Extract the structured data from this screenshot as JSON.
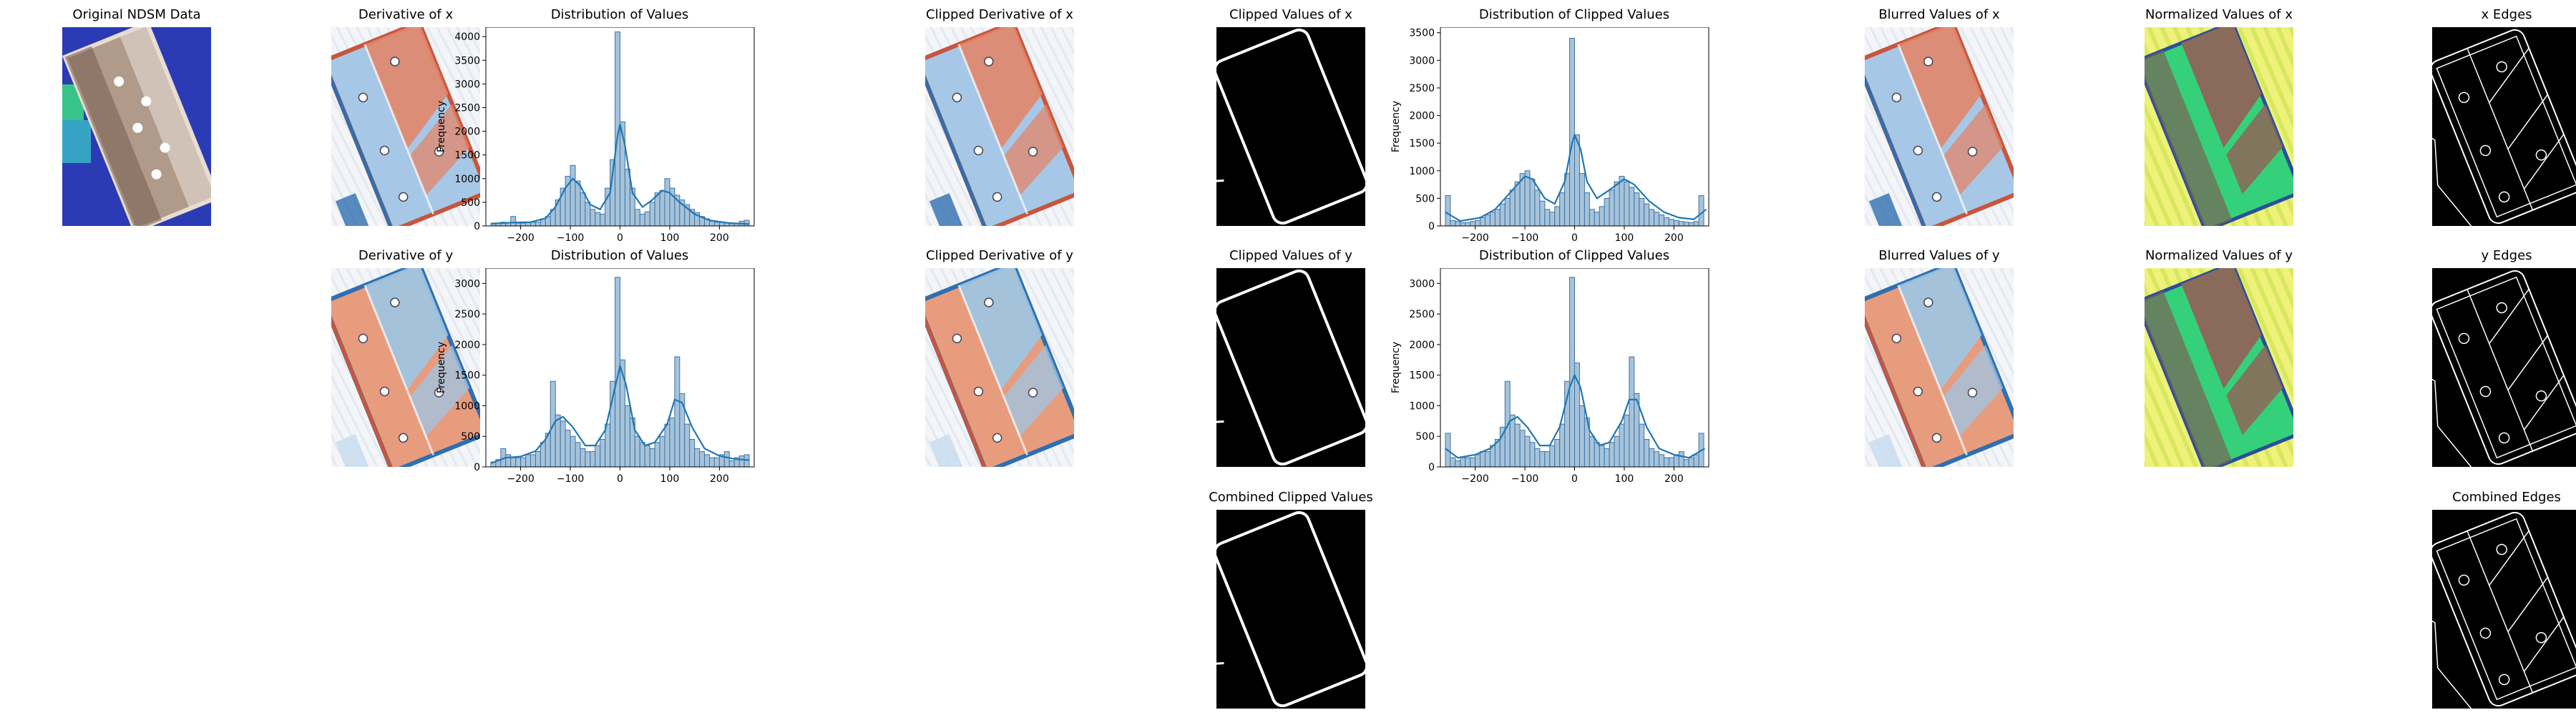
{
  "figure": {
    "panels": [
      {
        "id": "ndsm",
        "title": "Original NDSM Data",
        "kind": "ndsm"
      },
      {
        "id": "dx",
        "title": "Derivative of x",
        "kind": "rdbu-x"
      },
      {
        "id": "dx_hist",
        "title": "Distribution of Values",
        "kind": "hist"
      },
      {
        "id": "dx_clip",
        "title": "Clipped Derivative of x",
        "kind": "rdbu-x"
      },
      {
        "id": "cx",
        "title": "Clipped Values  of x",
        "kind": "edges-clip"
      },
      {
        "id": "cx_hist",
        "title": "Distribution of Clipped Values",
        "kind": "hist"
      },
      {
        "id": "bx",
        "title": "Blurred Values of x",
        "kind": "rdbu-x"
      },
      {
        "id": "nx",
        "title": "Normalized Values of x",
        "kind": "norm"
      },
      {
        "id": "ex",
        "title": "x Edges",
        "kind": "edges"
      },
      {
        "id": "dy",
        "title": "Derivative of y",
        "kind": "rdbu-y"
      },
      {
        "id": "dy_hist",
        "title": "Distribution of Values",
        "kind": "hist"
      },
      {
        "id": "dy_clip",
        "title": "Clipped Derivative of y",
        "kind": "rdbu-y"
      },
      {
        "id": "cy",
        "title": "Clipped Values  of y",
        "kind": "edges-clip"
      },
      {
        "id": "cy_hist",
        "title": "Distribution of Clipped Values",
        "kind": "hist"
      },
      {
        "id": "by",
        "title": "Blurred Values of y",
        "kind": "rdbu-y"
      },
      {
        "id": "ny",
        "title": "Normalized Values of y",
        "kind": "norm"
      },
      {
        "id": "ey",
        "title": "y Edges",
        "kind": "edges"
      },
      {
        "id": "cc",
        "title": "Combined Clipped Values",
        "kind": "edges-clip"
      },
      {
        "id": "ce",
        "title": "Combined Edges",
        "kind": "edges"
      }
    ],
    "colors": {
      "bar_fill": "#a6c3da",
      "bar_edge": "#3f73a3",
      "kde_line": "#1f77b4",
      "red": "#c8553d",
      "blue": "#2f6fb0",
      "navy": "#2b3bb5",
      "edge_bg": "#000000",
      "edge_line": "#ffffff"
    }
  },
  "chart_data": [
    {
      "id": "dx_hist",
      "type": "bar",
      "title": "Distribution of Values",
      "ylabel": "Frequency",
      "xlim": [
        -270,
        270
      ],
      "ylim": [
        0,
        4200
      ],
      "xticks": [
        -200,
        -100,
        0,
        100,
        200
      ],
      "yticks": [
        0,
        500,
        1000,
        1500,
        2000,
        2500,
        3000,
        3500,
        4000
      ],
      "bin_edges_step": 10,
      "x": [
        -255,
        -245,
        -235,
        -225,
        -215,
        -205,
        -195,
        -185,
        -175,
        -165,
        -155,
        -145,
        -135,
        -125,
        -115,
        -105,
        -95,
        -85,
        -75,
        -65,
        -55,
        -45,
        -35,
        -25,
        -15,
        -5,
        5,
        15,
        25,
        35,
        45,
        55,
        65,
        75,
        85,
        95,
        105,
        115,
        125,
        135,
        145,
        155,
        165,
        175,
        185,
        195,
        205,
        215,
        225,
        235,
        245,
        255
      ],
      "values": [
        40,
        60,
        80,
        60,
        200,
        60,
        60,
        70,
        80,
        80,
        150,
        200,
        350,
        550,
        800,
        1050,
        1280,
        950,
        700,
        500,
        350,
        280,
        250,
        800,
        1400,
        4100,
        2200,
        1200,
        800,
        350,
        250,
        300,
        500,
        700,
        750,
        1000,
        800,
        650,
        550,
        450,
        350,
        280,
        200,
        150,
        100,
        80,
        70,
        60,
        50,
        60,
        100,
        120
      ],
      "kde": [
        [
          -260,
          50
        ],
        [
          -220,
          70
        ],
        [
          -180,
          80
        ],
        [
          -150,
          160
        ],
        [
          -130,
          400
        ],
        [
          -110,
          800
        ],
        [
          -95,
          1000
        ],
        [
          -80,
          850
        ],
        [
          -60,
          450
        ],
        [
          -40,
          350
        ],
        [
          -20,
          700
        ],
        [
          -5,
          1900
        ],
        [
          0,
          2150
        ],
        [
          10,
          1700
        ],
        [
          25,
          700
        ],
        [
          45,
          400
        ],
        [
          65,
          550
        ],
        [
          85,
          750
        ],
        [
          100,
          700
        ],
        [
          120,
          500
        ],
        [
          150,
          250
        ],
        [
          180,
          120
        ],
        [
          220,
          60
        ],
        [
          260,
          40
        ]
      ]
    },
    {
      "id": "cx_hist",
      "type": "bar",
      "title": "Distribution of Clipped Values",
      "ylabel": "Frequency",
      "xlim": [
        -270,
        270
      ],
      "ylim": [
        0,
        3600
      ],
      "xticks": [
        -200,
        -100,
        0,
        100,
        200
      ],
      "yticks": [
        0,
        500,
        1000,
        1500,
        2000,
        2500,
        3000,
        3500
      ],
      "x": [
        -255,
        -245,
        -235,
        -225,
        -215,
        -205,
        -195,
        -185,
        -175,
        -165,
        -155,
        -145,
        -135,
        -125,
        -115,
        -105,
        -95,
        -85,
        -75,
        -65,
        -55,
        -45,
        -35,
        -25,
        -15,
        -5,
        5,
        15,
        25,
        35,
        45,
        55,
        65,
        75,
        85,
        95,
        105,
        115,
        125,
        135,
        145,
        155,
        165,
        175,
        185,
        195,
        205,
        215,
        225,
        235,
        245,
        255
      ],
      "values": [
        550,
        100,
        80,
        60,
        60,
        80,
        100,
        150,
        200,
        250,
        300,
        400,
        500,
        650,
        800,
        950,
        1000,
        850,
        650,
        450,
        300,
        250,
        350,
        600,
        950,
        3400,
        1650,
        950,
        600,
        300,
        250,
        350,
        500,
        650,
        800,
        900,
        800,
        700,
        600,
        500,
        400,
        300,
        250,
        200,
        150,
        120,
        100,
        80,
        70,
        60,
        80,
        550
      ],
      "kde": [
        [
          -260,
          250
        ],
        [
          -230,
          90
        ],
        [
          -190,
          150
        ],
        [
          -160,
          300
        ],
        [
          -130,
          600
        ],
        [
          -100,
          900
        ],
        [
          -85,
          850
        ],
        [
          -60,
          500
        ],
        [
          -40,
          400
        ],
        [
          -20,
          800
        ],
        [
          -5,
          1500
        ],
        [
          0,
          1650
        ],
        [
          12,
          1400
        ],
        [
          25,
          800
        ],
        [
          45,
          500
        ],
        [
          70,
          650
        ],
        [
          100,
          850
        ],
        [
          120,
          750
        ],
        [
          150,
          450
        ],
        [
          180,
          250
        ],
        [
          210,
          150
        ],
        [
          240,
          120
        ],
        [
          265,
          300
        ]
      ]
    },
    {
      "id": "dy_hist",
      "type": "bar",
      "title": "Distribution of Values",
      "ylabel": "Frequency",
      "xlim": [
        -270,
        270
      ],
      "ylim": [
        0,
        3250
      ],
      "xticks": [
        -200,
        -100,
        0,
        100,
        200
      ],
      "yticks": [
        0,
        500,
        1000,
        1500,
        2000,
        2500,
        3000
      ],
      "x": [
        -255,
        -245,
        -235,
        -225,
        -215,
        -205,
        -195,
        -185,
        -175,
        -165,
        -155,
        -145,
        -135,
        -125,
        -115,
        -105,
        -95,
        -85,
        -75,
        -65,
        -55,
        -45,
        -35,
        -25,
        -15,
        -5,
        5,
        15,
        25,
        35,
        45,
        55,
        65,
        75,
        85,
        95,
        105,
        115,
        125,
        135,
        145,
        155,
        165,
        175,
        185,
        195,
        205,
        215,
        225,
        235,
        245,
        255
      ],
      "values": [
        80,
        120,
        300,
        200,
        150,
        150,
        150,
        200,
        200,
        250,
        400,
        550,
        1400,
        850,
        750,
        600,
        500,
        400,
        300,
        250,
        250,
        350,
        450,
        700,
        1400,
        3100,
        1750,
        1000,
        800,
        500,
        400,
        350,
        300,
        400,
        500,
        700,
        800,
        1800,
        1200,
        700,
        450,
        300,
        250,
        200,
        150,
        150,
        200,
        250,
        100,
        150,
        180,
        200
      ],
      "kde": [
        [
          -260,
          60
        ],
        [
          -230,
          150
        ],
        [
          -200,
          170
        ],
        [
          -170,
          260
        ],
        [
          -150,
          450
        ],
        [
          -130,
          750
        ],
        [
          -115,
          820
        ],
        [
          -95,
          650
        ],
        [
          -70,
          350
        ],
        [
          -50,
          350
        ],
        [
          -30,
          600
        ],
        [
          -10,
          1300
        ],
        [
          0,
          1650
        ],
        [
          12,
          1350
        ],
        [
          30,
          600
        ],
        [
          50,
          350
        ],
        [
          70,
          400
        ],
        [
          95,
          700
        ],
        [
          110,
          1100
        ],
        [
          125,
          1050
        ],
        [
          145,
          650
        ],
        [
          170,
          300
        ],
        [
          200,
          180
        ],
        [
          230,
          130
        ],
        [
          260,
          110
        ]
      ]
    },
    {
      "id": "cy_hist",
      "type": "bar",
      "title": "Distribution of Clipped Values",
      "ylabel": "Frequency",
      "xlim": [
        -270,
        270
      ],
      "ylim": [
        0,
        3250
      ],
      "xticks": [
        -200,
        -100,
        0,
        100,
        200
      ],
      "yticks": [
        0,
        500,
        1000,
        1500,
        2000,
        2500,
        3000
      ],
      "x": [
        -255,
        -245,
        -235,
        -225,
        -215,
        -205,
        -195,
        -185,
        -175,
        -165,
        -155,
        -145,
        -135,
        -125,
        -115,
        -105,
        -95,
        -85,
        -75,
        -65,
        -55,
        -45,
        -35,
        -25,
        -15,
        -5,
        5,
        15,
        25,
        35,
        45,
        55,
        65,
        75,
        85,
        95,
        105,
        115,
        125,
        135,
        145,
        155,
        165,
        175,
        185,
        195,
        205,
        215,
        225,
        235,
        245,
        255
      ],
      "values": [
        550,
        150,
        100,
        150,
        150,
        150,
        200,
        250,
        250,
        350,
        450,
        650,
        1400,
        850,
        700,
        600,
        500,
        400,
        300,
        250,
        250,
        350,
        450,
        700,
        1400,
        3100,
        1700,
        1000,
        800,
        500,
        400,
        350,
        300,
        400,
        500,
        700,
        850,
        1800,
        1200,
        700,
        450,
        300,
        250,
        200,
        150,
        150,
        200,
        250,
        120,
        150,
        200,
        550
      ],
      "kde": [
        [
          -260,
          300
        ],
        [
          -235,
          150
        ],
        [
          -200,
          200
        ],
        [
          -170,
          300
        ],
        [
          -150,
          450
        ],
        [
          -130,
          750
        ],
        [
          -115,
          820
        ],
        [
          -95,
          650
        ],
        [
          -70,
          350
        ],
        [
          -50,
          350
        ],
        [
          -30,
          650
        ],
        [
          -10,
          1300
        ],
        [
          0,
          1500
        ],
        [
          12,
          1300
        ],
        [
          30,
          600
        ],
        [
          50,
          350
        ],
        [
          70,
          400
        ],
        [
          95,
          750
        ],
        [
          110,
          1100
        ],
        [
          125,
          1100
        ],
        [
          145,
          650
        ],
        [
          170,
          300
        ],
        [
          200,
          200
        ],
        [
          230,
          150
        ],
        [
          262,
          300
        ]
      ]
    }
  ]
}
